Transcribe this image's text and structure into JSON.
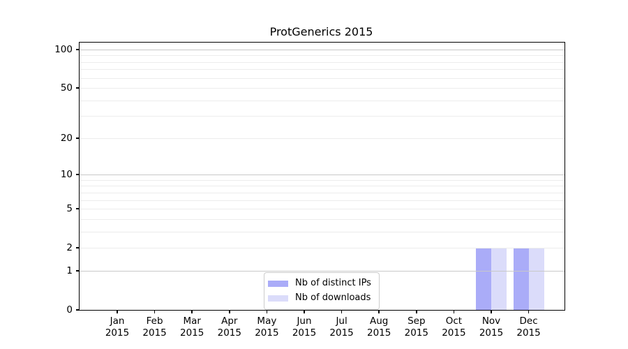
{
  "title": "ProtGenerics 2015",
  "chart_data": {
    "type": "bar",
    "title": "ProtGenerics 2015",
    "x_categories": [
      "Jan 2015",
      "Feb 2015",
      "Mar 2015",
      "Apr 2015",
      "May 2015",
      "Jun 2015",
      "Jul 2015",
      "Aug 2015",
      "Sep 2015",
      "Oct 2015",
      "Nov 2015",
      "Dec 2015"
    ],
    "x_tick_months": [
      "Jan",
      "Feb",
      "Mar",
      "Apr",
      "May",
      "Jun",
      "Jul",
      "Aug",
      "Sep",
      "Oct",
      "Nov",
      "Dec"
    ],
    "x_tick_year": "2015",
    "series": [
      {
        "name": "Nb of distinct IPs",
        "color": "#aaacf8",
        "values": [
          0,
          0,
          0,
          0,
          0,
          0,
          0,
          0,
          0,
          0,
          2,
          2
        ]
      },
      {
        "name": "Nb of downloads",
        "color": "#dbdcfa",
        "values": [
          0,
          0,
          0,
          0,
          0,
          0,
          0,
          0,
          0,
          0,
          2,
          2
        ]
      }
    ],
    "y_axis": {
      "scale": "log1p",
      "tick_values": [
        100,
        50,
        20,
        10,
        5,
        2,
        1,
        0
      ],
      "tick_labels": [
        "100",
        "50",
        "20",
        "10",
        "5",
        "2",
        "1",
        "0"
      ],
      "major_gridlines": [
        1,
        10,
        100
      ],
      "minor_gridlines": [
        2,
        3,
        4,
        5,
        6,
        7,
        8,
        9,
        20,
        30,
        40,
        50,
        60,
        70,
        80,
        90
      ],
      "ylim": [
        0,
        113
      ]
    },
    "grid": true,
    "legend_position": "lower center"
  },
  "legend": {
    "items": [
      {
        "label": "Nb of distinct IPs",
        "color": "#aaacf8"
      },
      {
        "label": "Nb of downloads",
        "color": "#dbdcfa"
      }
    ]
  },
  "colors": {
    "background": "#ffffff",
    "spine": "#000000",
    "major_grid": "#c8c8c8",
    "minor_grid": "#ececec",
    "bar_distinct_ips": "#aaacf8",
    "bar_downloads": "#dbdcfa",
    "legend_border": "#cccccc"
  }
}
